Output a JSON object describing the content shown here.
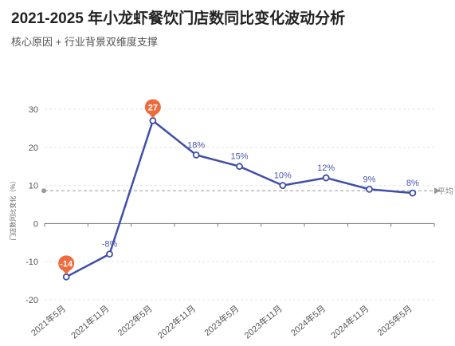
{
  "title": "2021-2025 年小龙虾餐饮门店数同比变化波动分析",
  "subtitle": "核心原因 + 行业背景双维度支撑",
  "colors": {
    "line": "#3f4fa8",
    "pin": "#ee6b3c",
    "avg": "#999999",
    "label": "#4a56b0"
  },
  "chart_data": {
    "type": "line",
    "categories": [
      "2021年5月",
      "2021年11月",
      "2022年5月",
      "2022年11月",
      "2023年5月",
      "2023年11月",
      "2024年5月",
      "2024年11月",
      "2025年5月"
    ],
    "series": [
      {
        "values": [
          -14,
          -8,
          27,
          18,
          15,
          10,
          12,
          9,
          8
        ]
      }
    ],
    "data_labels": [
      "-14",
      "-8%",
      "27",
      "18%",
      "15%",
      "10%",
      "12%",
      "9%",
      "8%"
    ],
    "ylabel": "门店数同比变化（%）",
    "ylim": [
      -20,
      30
    ],
    "yticks": [
      -20,
      -10,
      0,
      10,
      20,
      30
    ],
    "grid": true,
    "markers": {
      "max": 27,
      "min": -14
    },
    "average": {
      "value": 8.6,
      "label": "平均"
    }
  }
}
